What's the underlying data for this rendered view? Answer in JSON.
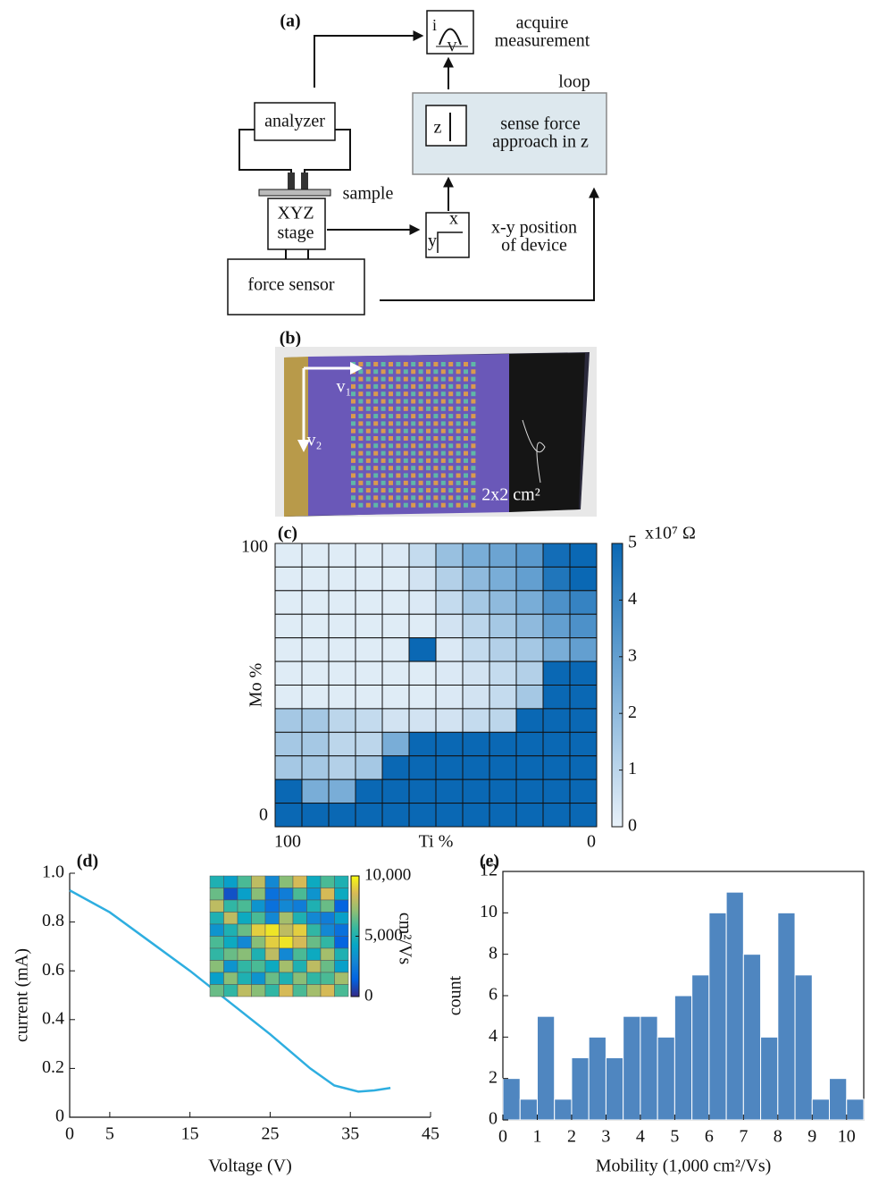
{
  "diagram": {
    "panel_label": "(a)",
    "acquire": [
      "acquire",
      "measurement"
    ],
    "loop": "loop",
    "sense": [
      "sense force",
      "approach in z"
    ],
    "analyzer": "analyzer",
    "sample": "sample",
    "stage": [
      "XYZ",
      "stage"
    ],
    "position": [
      "x-y position",
      "of device"
    ],
    "force_sensor": "force sensor",
    "icons": {
      "i": "i",
      "v": "V",
      "z": "z",
      "x": "x",
      "y": "y"
    }
  },
  "photo": {
    "panel_label": "(b)",
    "v1": "v₁",
    "v2": "v₂",
    "size": "2x2 cm²"
  },
  "chart_data": [
    {
      "type": "heatmap",
      "panel_label": "(c)",
      "xlabel": "Ti %",
      "ylabel": "Mo %",
      "xlim": [
        100,
        0
      ],
      "xticks": [
        100,
        0
      ],
      "ylim": [
        0,
        100
      ],
      "yticks": [
        0,
        100
      ],
      "z": [
        [
          0.2,
          0.2,
          0.2,
          0.2,
          0.3,
          0.8,
          1.8,
          2.5,
          2.8,
          3.2,
          4.8,
          5
        ],
        [
          0.2,
          0.2,
          0.2,
          0.2,
          0.2,
          0.5,
          1.2,
          2,
          2.5,
          3,
          4.5,
          5
        ],
        [
          0.2,
          0.2,
          0.2,
          0.2,
          0.2,
          0.3,
          0.8,
          1.5,
          2,
          2.5,
          3.5,
          4
        ],
        [
          0.2,
          0.2,
          0.2,
          0.2,
          0.2,
          0.2,
          0.5,
          1,
          1.5,
          2,
          3,
          3.5
        ],
        [
          0.2,
          0.2,
          0.2,
          0.2,
          0.2,
          5,
          0.3,
          0.8,
          1.2,
          1.5,
          2.5,
          3
        ],
        [
          0.2,
          0.2,
          0.2,
          0.2,
          0.2,
          0.2,
          0.3,
          0.5,
          0.8,
          1.2,
          5,
          5
        ],
        [
          0.2,
          0.2,
          0.2,
          0.2,
          0.2,
          0.2,
          0.3,
          0.5,
          0.8,
          1.5,
          5,
          5
        ],
        [
          1.5,
          1.5,
          1,
          0.8,
          0.5,
          0.5,
          0.5,
          0.8,
          1,
          5,
          5,
          5
        ],
        [
          1.5,
          1.5,
          1,
          1,
          2.5,
          5,
          5,
          5,
          5,
          5,
          5,
          5
        ],
        [
          1.5,
          1.5,
          1.2,
          1.5,
          5,
          5,
          5,
          5,
          5,
          5,
          5,
          5
        ],
        [
          5,
          2.5,
          2.5,
          5,
          5,
          5,
          5,
          5,
          5,
          5,
          5,
          5
        ],
        [
          5,
          5,
          5,
          5,
          5,
          5,
          5,
          5,
          5,
          5,
          5,
          5
        ]
      ],
      "zlim": [
        0,
        5
      ],
      "zticks": [
        0,
        1,
        2,
        3,
        4,
        5
      ],
      "colorbar_label": "x10⁷ Ω",
      "colormap": [
        "#e8f1f9",
        "#0a68b4"
      ]
    },
    {
      "type": "line",
      "panel_label": "(d)",
      "xlabel": "Voltage (V)",
      "ylabel": "current (mA)",
      "x": [
        0,
        5,
        10,
        15,
        20,
        25,
        30,
        33,
        36,
        38,
        40
      ],
      "values": [
        0.93,
        0.84,
        0.72,
        0.6,
        0.47,
        0.34,
        0.2,
        0.13,
        0.105,
        0.11,
        0.12
      ],
      "color": "#2eaee0",
      "xlim": [
        0,
        45
      ],
      "xticks": [
        0,
        5,
        15,
        25,
        35,
        45
      ],
      "ylim": [
        0,
        1
      ],
      "yticks": [
        0,
        0.2,
        0.4,
        0.6,
        0.8,
        {
          "value": 1,
          "label": "1.0"
        }
      ],
      "inset": {
        "type": "heatmap",
        "z": [
          [
            5000,
            4000,
            6000,
            8000,
            3000,
            7000,
            8500,
            4500,
            6000,
            5000
          ],
          [
            6500,
            1000,
            4000,
            7000,
            2000,
            2500,
            6000,
            3500,
            8500,
            4500
          ],
          [
            8000,
            5500,
            6000,
            3500,
            2000,
            3000,
            2500,
            5000,
            6500,
            1500
          ],
          [
            5000,
            8000,
            4500,
            6000,
            3000,
            7500,
            5000,
            3000,
            2500,
            4000
          ],
          [
            3500,
            5000,
            6500,
            9000,
            9500,
            8000,
            9000,
            5500,
            3000,
            2000
          ],
          [
            6000,
            4500,
            3000,
            7000,
            9000,
            9500,
            8500,
            6500,
            5500,
            1500
          ],
          [
            5500,
            6500,
            7000,
            5000,
            8000,
            3000,
            6000,
            4500,
            7500,
            5000
          ],
          [
            7000,
            3500,
            5500,
            6000,
            4500,
            7500,
            5000,
            8000,
            6500,
            4000
          ],
          [
            4000,
            7000,
            5000,
            3500,
            6500,
            5000,
            7000,
            5500,
            6000,
            7500
          ],
          [
            6500,
            5500,
            8000,
            7000,
            5500,
            8500,
            6000,
            7500,
            8500,
            6000
          ]
        ],
        "zlim": [
          0,
          10000
        ],
        "zticks": [
          0,
          {
            "value": 5000,
            "label": "5,000"
          },
          {
            "value": 10000,
            "label": "10,000"
          }
        ],
        "colorbar_label": "cm²/Vs",
        "colormap": [
          "#352a87",
          "#0363e1",
          "#1485d4",
          "#06a7c6",
          "#38b99e",
          "#92bf73",
          "#d9ba56",
          "#f9fb0e"
        ]
      }
    },
    {
      "type": "histogram",
      "panel_label": "(e)",
      "xlabel": "Mobility (1,000 cm²/Vs)",
      "ylabel": "count",
      "bins": [
        0,
        0.5,
        1,
        1.5,
        2,
        2.5,
        3,
        3.5,
        4,
        4.5,
        5,
        5.5,
        6,
        6.5,
        7,
        7.5,
        8,
        8.5,
        9,
        9.5,
        10,
        10.5
      ],
      "values": [
        2,
        1,
        5,
        1,
        3,
        4,
        3,
        5,
        5,
        4,
        6,
        7,
        10,
        11,
        8,
        4,
        10,
        7,
        1,
        2,
        1
      ],
      "color": "#4f86c0",
      "xlim": [
        0,
        10.5
      ],
      "xticks": [
        0,
        1,
        2,
        3,
        4,
        5,
        6,
        7,
        8,
        9,
        10
      ],
      "ylim": [
        0,
        12
      ],
      "yticks": [
        0,
        2,
        4,
        6,
        8,
        10,
        12
      ]
    }
  ]
}
